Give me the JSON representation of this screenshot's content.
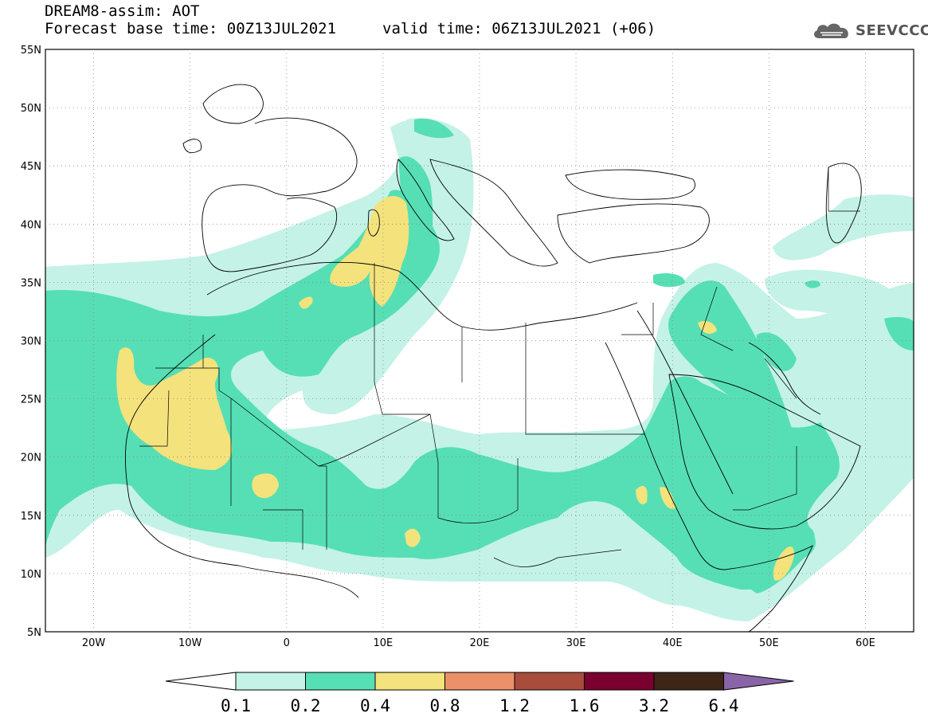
{
  "header": {
    "title": "DREAM8-assim: AOT",
    "base_time": "Forecast base time: 00Z13JUL2021",
    "valid_time": "valid time: 06Z13JUL2021 (+06)",
    "logo_text": "SEEVCCC",
    "logo_icon": "cloud-logo-icon"
  },
  "map": {
    "lat_labels": [
      "55N",
      "50N",
      "45N",
      "40N",
      "35N",
      "30N",
      "25N",
      "20N",
      "15N",
      "10N",
      "5N"
    ],
    "lon_labels": [
      "20W",
      "10W",
      "0",
      "10E",
      "20E",
      "30E",
      "40E",
      "50E",
      "60E"
    ],
    "lat_range": [
      5,
      55
    ],
    "lon_range": [
      -25,
      65
    ],
    "grid": "dotted"
  },
  "colorbar": {
    "labels": [
      "0.1",
      "0.2",
      "0.4",
      "0.8",
      "1.2",
      "1.6",
      "3.2",
      "6.4"
    ],
    "colors": [
      "#ffffff",
      "#c4f2e6",
      "#56dfb4",
      "#f4e27c",
      "#ea916a",
      "#a84c3c",
      "#7a0030",
      "#3e2617",
      "#8a64a8"
    ]
  }
}
